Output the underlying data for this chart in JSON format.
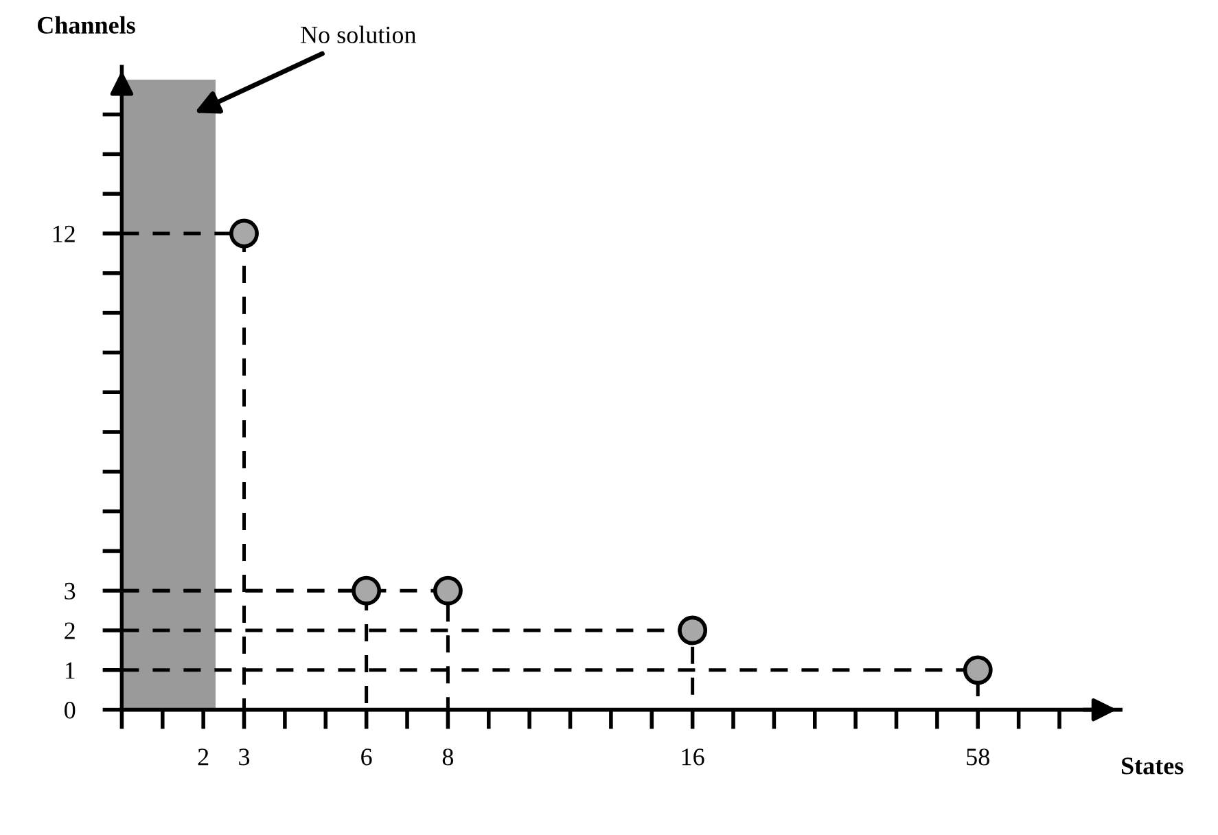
{
  "chart_data": {
    "type": "scatter",
    "xlabel": "States",
    "ylabel": "Channels",
    "categories": [
      null,
      null,
      "2",
      "3",
      null,
      null,
      "6",
      null,
      "8",
      null,
      null,
      null,
      null,
      null,
      "16",
      null,
      null,
      null,
      null,
      null,
      null,
      "58",
      null,
      null
    ],
    "series": [
      {
        "color": "#a8a8a8",
        "x": [
          "3",
          "6",
          "8",
          "16",
          "58"
        ],
        "values": [
          12,
          3,
          3,
          2,
          1
        ]
      }
    ],
    "ylim": [
      0,
      16.2
    ],
    "yticks": [
      0,
      1,
      2,
      3,
      {
        "value": 4,
        "label": null
      },
      {
        "value": 5,
        "label": null
      },
      {
        "value": 6,
        "label": null
      },
      {
        "value": 7,
        "label": null
      },
      {
        "value": 8,
        "label": null
      },
      {
        "value": 9,
        "label": null
      },
      {
        "value": 10,
        "label": null
      },
      {
        "value": 11,
        "label": null
      },
      12,
      {
        "value": 13,
        "label": null
      },
      {
        "value": 14,
        "label": null
      },
      {
        "value": 15,
        "label": null
      }
    ],
    "annotations": [
      "No solution"
    ],
    "marker": "circle",
    "line_style": "dashed",
    "grid": false,
    "legend": false
  }
}
